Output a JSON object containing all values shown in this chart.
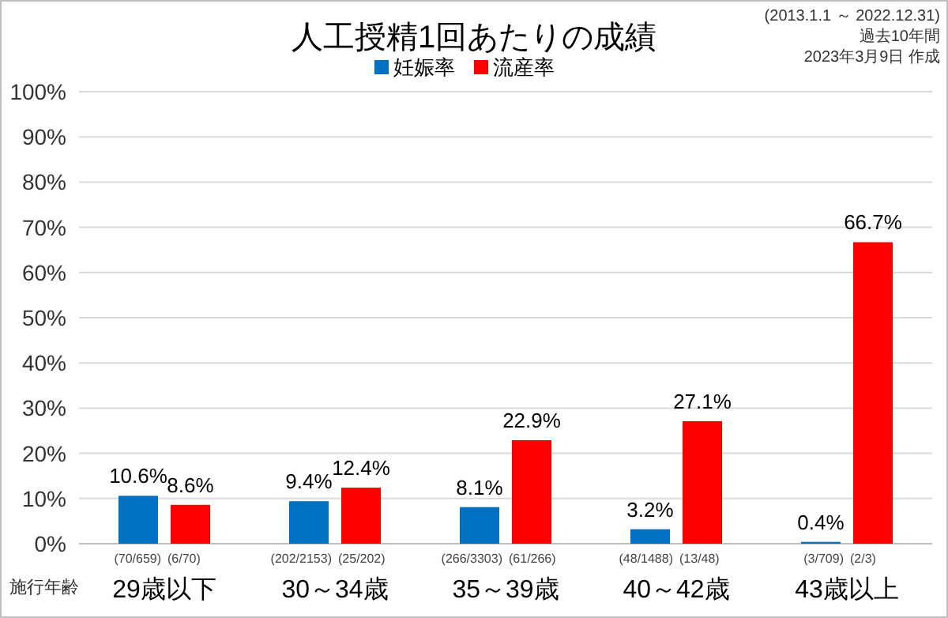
{
  "chart_data": {
    "type": "bar",
    "title": "人工授精1回あたりの成績",
    "xlabel": "施行年齢",
    "categories": [
      "29歳以下",
      "30～34歳",
      "35～39歳",
      "40～42歳",
      "43歳以上"
    ],
    "series": [
      {
        "name": "妊娠率",
        "color": "#0070c0",
        "values": [
          10.6,
          9.4,
          8.1,
          3.2,
          0.4
        ],
        "value_labels": [
          "10.6%",
          "9.4%",
          "8.1%",
          "3.2%",
          "0.4%"
        ]
      },
      {
        "name": "流産率",
        "color": "#ff0000",
        "values": [
          8.6,
          12.4,
          22.9,
          27.1,
          66.7
        ],
        "value_labels": [
          "8.6%",
          "12.4%",
          "22.9%",
          "27.1%",
          "66.7%"
        ]
      }
    ],
    "ylim": [
      0,
      100
    ],
    "yticks": [
      {
        "value": 0,
        "label": "0%"
      },
      {
        "value": 10,
        "label": "10%"
      },
      {
        "value": 20,
        "label": "20%"
      },
      {
        "value": 30,
        "label": "30%"
      },
      {
        "value": 40,
        "label": "40%"
      },
      {
        "value": 50,
        "label": "50%"
      },
      {
        "value": 60,
        "label": "60%"
      },
      {
        "value": 70,
        "label": "70%"
      },
      {
        "value": 80,
        "label": "80%"
      },
      {
        "value": 90,
        "label": "90%"
      },
      {
        "value": 100,
        "label": "100%"
      }
    ],
    "grid": "y",
    "legend": "top",
    "annotations": [
      "(2013.1.1 ～ 2022.12.31)",
      "過去10年間",
      "2023年3月9日 作成",
      {
        "text": "(70/659)",
        "x": "29歳以下",
        "y": 0
      },
      {
        "text": "(6/70)",
        "x": "29歳以下",
        "y": 0
      },
      {
        "text": "(202/2153)",
        "x": "30～34歳",
        "y": 0
      },
      {
        "text": "(25/202)",
        "x": "30～34歳",
        "y": 0
      },
      {
        "text": "(266/3303)",
        "x": "35～39歳",
        "y": 0
      },
      {
        "text": "(61/266)",
        "x": "35～39歳",
        "y": 0
      },
      {
        "text": "(48/1488)",
        "x": "40～42歳",
        "y": 0
      },
      {
        "text": "(13/48)",
        "x": "40～42歳",
        "y": 0
      },
      {
        "text": "(3/709)",
        "x": "43歳以上",
        "y": 0
      },
      {
        "text": "(2/3)",
        "x": "43歳以上",
        "y": 0
      }
    ]
  }
}
